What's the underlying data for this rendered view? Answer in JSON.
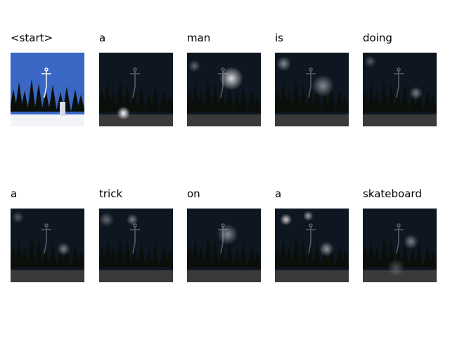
{
  "figure": {
    "words": [
      "<start>",
      "a",
      "man",
      "is",
      "doing",
      "a",
      "trick",
      "on",
      "a",
      "skateboard"
    ],
    "colors": {
      "sky": "#3a66c4",
      "night": "#0e1622",
      "snow": "#f2f4f8",
      "ground": "#3a3a3a",
      "trees": "#0a0f0a"
    },
    "attention": [
      null,
      [
        [
          0.33,
          0.82,
          0.09,
          1.0
        ]
      ],
      [
        [
          0.6,
          0.35,
          0.16,
          0.85
        ],
        [
          0.1,
          0.18,
          0.08,
          0.35
        ]
      ],
      [
        [
          0.12,
          0.15,
          0.1,
          0.5
        ],
        [
          0.65,
          0.45,
          0.15,
          0.5
        ]
      ],
      [
        [
          0.72,
          0.55,
          0.09,
          0.45
        ],
        [
          0.1,
          0.12,
          0.08,
          0.3
        ]
      ],
      [
        [
          0.72,
          0.55,
          0.09,
          0.45
        ],
        [
          0.1,
          0.12,
          0.08,
          0.3
        ]
      ],
      [
        [
          0.45,
          0.15,
          0.08,
          0.45
        ],
        [
          0.1,
          0.15,
          0.1,
          0.35
        ]
      ],
      [
        [
          0.55,
          0.35,
          0.14,
          0.5
        ]
      ],
      [
        [
          0.15,
          0.15,
          0.08,
          0.8
        ],
        [
          0.45,
          0.1,
          0.07,
          0.6
        ],
        [
          0.7,
          0.55,
          0.1,
          0.55
        ]
      ],
      [
        [
          0.65,
          0.45,
          0.1,
          0.45
        ],
        [
          0.45,
          0.8,
          0.12,
          0.25
        ]
      ]
    ]
  }
}
